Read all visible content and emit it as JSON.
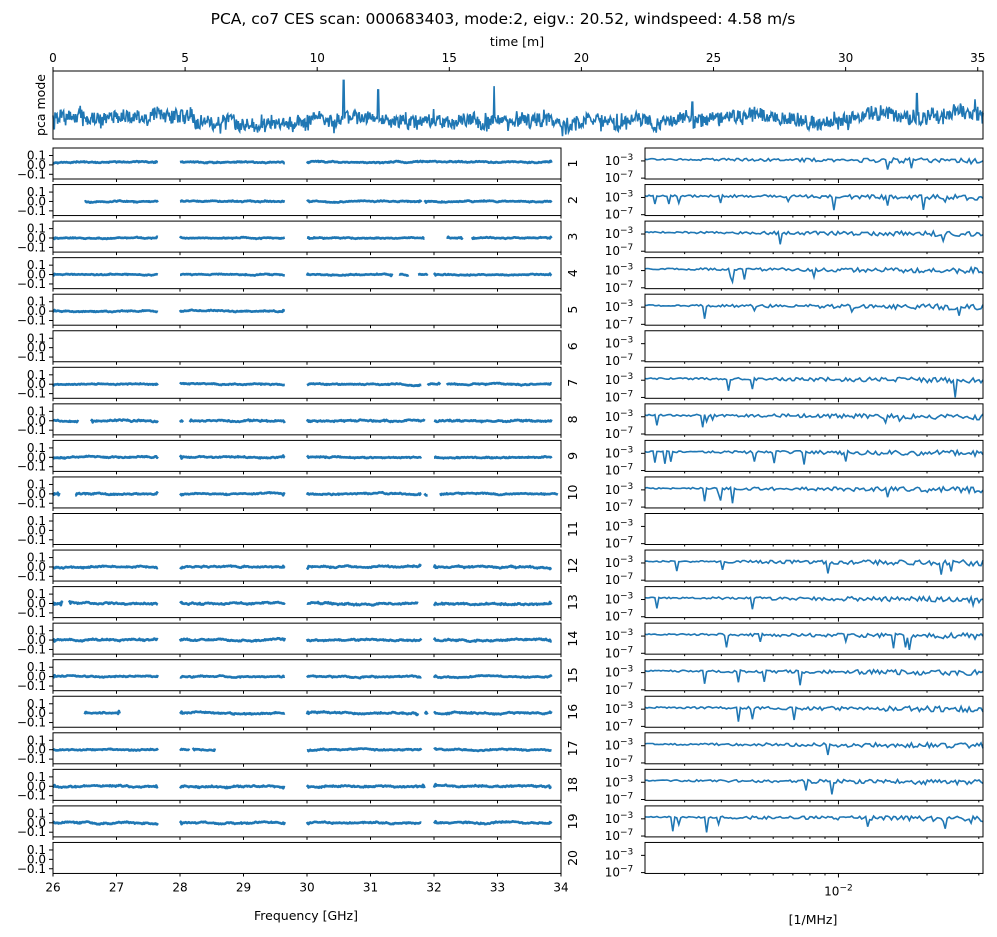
{
  "chart_data": [
    {
      "panel": "top",
      "type": "line",
      "title": "PCA, co7 CES scan: 000683403, mode:2, eigv.: 20.52, windspeed: 4.58 m/s",
      "xlabel": "time [m]",
      "ylabel": "pca mode",
      "xlim": [
        0,
        35.2
      ],
      "xticks": [
        0,
        5,
        10,
        15,
        20,
        25,
        30,
        35
      ],
      "series": [
        {
          "name": "pca mode",
          "color": "#1f77b4",
          "baseline": 0.0,
          "noise": 0.35,
          "drift": 0.15,
          "spikes": [
            [
              11.0,
              2.1
            ],
            [
              12.3,
              1.6
            ],
            [
              16.7,
              1.8
            ],
            [
              24.2,
              0.95
            ],
            [
              32.7,
              1.4
            ],
            [
              34.9,
              1.1
            ]
          ]
        }
      ],
      "ylim": [
        -1.0,
        2.6
      ]
    },
    {
      "panel": "left-grid",
      "type": "scatter",
      "xlabel": "Frequency [GHz]",
      "xlim": [
        26,
        34
      ],
      "xticks": [
        "26",
        "27",
        "28",
        "29",
        "30",
        "31",
        "32",
        "33",
        "34"
      ],
      "ylim": [
        -0.15,
        0.18
      ],
      "yticks": [
        "0.1",
        "0.0",
        "−0.1"
      ],
      "color": "#1f77b4",
      "feeds": [
        {
          "feed": "1",
          "level": 0.03,
          "noise": 0.008,
          "segments": [
            [
              26.0,
              27.65
            ],
            [
              28.0,
              29.65
            ],
            [
              30.0,
              33.85
            ]
          ]
        },
        {
          "feed": "2",
          "level": 0.0,
          "noise": 0.008,
          "segments": [
            [
              26.5,
              27.65
            ],
            [
              28.0,
              29.65
            ],
            [
              30.0,
              31.8
            ],
            [
              31.85,
              33.85
            ]
          ]
        },
        {
          "feed": "3",
          "level": 0.0,
          "noise": 0.007,
          "segments": [
            [
              26.0,
              27.65
            ],
            [
              28.0,
              29.65
            ],
            [
              30.0,
              31.85
            ],
            [
              32.2,
              32.45
            ],
            [
              32.6,
              33.85
            ]
          ]
        },
        {
          "feed": "4",
          "level": 0.0,
          "noise": 0.007,
          "segments": [
            [
              26.0,
              27.65
            ],
            [
              28.0,
              29.65
            ],
            [
              30.0,
              31.35
            ],
            [
              31.45,
              31.6
            ],
            [
              31.75,
              31.9
            ],
            [
              32.0,
              33.85
            ]
          ]
        },
        {
          "feed": "5",
          "level": 0.0,
          "noise": 0.008,
          "segments": [
            [
              26.0,
              27.65
            ],
            [
              28.0,
              29.65
            ]
          ]
        },
        {
          "feed": "6",
          "level": 0.0,
          "noise": 0.0,
          "segments": []
        },
        {
          "feed": "7",
          "level": 0.0,
          "noise": 0.008,
          "segments": [
            [
              26.0,
              27.65
            ],
            [
              28.0,
              29.65
            ],
            [
              30.0,
              31.8
            ],
            [
              31.9,
              32.1
            ],
            [
              32.2,
              33.85
            ]
          ]
        },
        {
          "feed": "8",
          "level": 0.0,
          "noise": 0.01,
          "segments": [
            [
              26.0,
              26.4
            ],
            [
              26.6,
              27.65
            ],
            [
              28.0,
              28.05
            ],
            [
              28.15,
              29.65
            ],
            [
              30.0,
              31.85
            ],
            [
              32.0,
              33.85
            ]
          ]
        },
        {
          "feed": "9",
          "level": 0.0,
          "noise": 0.009,
          "segments": [
            [
              26.0,
              27.65
            ],
            [
              28.0,
              29.65
            ],
            [
              30.0,
              31.8
            ],
            [
              32.0,
              33.85
            ]
          ]
        },
        {
          "feed": "10",
          "level": 0.0,
          "noise": 0.009,
          "segments": [
            [
              26.0,
              26.1
            ],
            [
              26.35,
              27.65
            ],
            [
              28.0,
              29.65
            ],
            [
              30.0,
              31.8
            ],
            [
              31.85,
              31.9
            ],
            [
              32.1,
              33.95
            ]
          ]
        },
        {
          "feed": "11",
          "level": 0.0,
          "noise": 0.0,
          "segments": []
        },
        {
          "feed": "12",
          "level": 0.0,
          "noise": 0.01,
          "segments": [
            [
              26.0,
              27.65
            ],
            [
              28.0,
              29.65
            ],
            [
              30.0,
              31.8
            ],
            [
              32.0,
              33.85
            ]
          ]
        },
        {
          "feed": "13",
          "level": 0.0,
          "noise": 0.012,
          "segments": [
            [
              26.0,
              26.15
            ],
            [
              26.25,
              27.65
            ],
            [
              28.0,
              29.65
            ],
            [
              30.0,
              31.75
            ],
            [
              32.0,
              33.85
            ]
          ]
        },
        {
          "feed": "14",
          "level": 0.0,
          "noise": 0.01,
          "segments": [
            [
              26.0,
              27.65
            ],
            [
              28.0,
              29.65
            ],
            [
              30.0,
              31.8
            ],
            [
              32.0,
              33.85
            ]
          ]
        },
        {
          "feed": "15",
          "level": 0.0,
          "noise": 0.008,
          "segments": [
            [
              26.0,
              27.65
            ],
            [
              28.0,
              29.65
            ],
            [
              30.0,
              31.8
            ],
            [
              32.0,
              33.85
            ]
          ]
        },
        {
          "feed": "16",
          "level": 0.0,
          "noise": 0.01,
          "segments": [
            [
              26.5,
              27.05
            ],
            [
              28.0,
              29.65
            ],
            [
              30.0,
              31.75
            ],
            [
              31.85,
              31.9
            ],
            [
              32.0,
              33.85
            ]
          ]
        },
        {
          "feed": "17",
          "level": 0.0,
          "noise": 0.008,
          "segments": [
            [
              26.0,
              27.65
            ],
            [
              28.0,
              28.15
            ],
            [
              28.2,
              28.55
            ],
            [
              30.0,
              31.8
            ],
            [
              32.0,
              33.85
            ]
          ]
        },
        {
          "feed": "18",
          "level": 0.0,
          "noise": 0.011,
          "segments": [
            [
              26.0,
              27.65
            ],
            [
              28.0,
              29.65
            ],
            [
              30.0,
              31.85
            ],
            [
              32.0,
              33.85
            ]
          ]
        },
        {
          "feed": "19",
          "level": 0.0,
          "noise": 0.01,
          "segments": [
            [
              26.0,
              27.65
            ],
            [
              28.0,
              29.65
            ],
            [
              30.0,
              31.8
            ],
            [
              32.0,
              33.85
            ]
          ]
        },
        {
          "feed": "20",
          "level": 0.0,
          "noise": 0.0,
          "segments": []
        }
      ]
    },
    {
      "panel": "right-grid",
      "type": "line",
      "xscale": "log",
      "yscale": "log",
      "xlabel": "[1/MHz]",
      "xlim": [
        0.0022,
        0.031
      ],
      "xticks": [
        {
          "value": 0.01,
          "base": "10",
          "exp": "−2"
        }
      ],
      "ylim_log10": [
        -7.2,
        0.0
      ],
      "yticks": [
        {
          "value_log10": -3,
          "base": "10",
          "exp": "−3"
        },
        {
          "value_log10": -7,
          "base": "10",
          "exp": "−7"
        }
      ],
      "color": "#1f77b4",
      "feeds": [
        {
          "feed": "1",
          "has_data": true
        },
        {
          "feed": "2",
          "has_data": true
        },
        {
          "feed": "3",
          "has_data": true
        },
        {
          "feed": "4",
          "has_data": true
        },
        {
          "feed": "5",
          "has_data": true
        },
        {
          "feed": "6",
          "has_data": false
        },
        {
          "feed": "7",
          "has_data": true
        },
        {
          "feed": "8",
          "has_data": true
        },
        {
          "feed": "9",
          "has_data": true
        },
        {
          "feed": "10",
          "has_data": true
        },
        {
          "feed": "11",
          "has_data": false
        },
        {
          "feed": "12",
          "has_data": true
        },
        {
          "feed": "13",
          "has_data": true
        },
        {
          "feed": "14",
          "has_data": true
        },
        {
          "feed": "15",
          "has_data": true
        },
        {
          "feed": "16",
          "has_data": true
        },
        {
          "feed": "17",
          "has_data": true
        },
        {
          "feed": "18",
          "has_data": true
        },
        {
          "feed": "19",
          "has_data": true
        },
        {
          "feed": "20",
          "has_data": false
        }
      ]
    }
  ]
}
